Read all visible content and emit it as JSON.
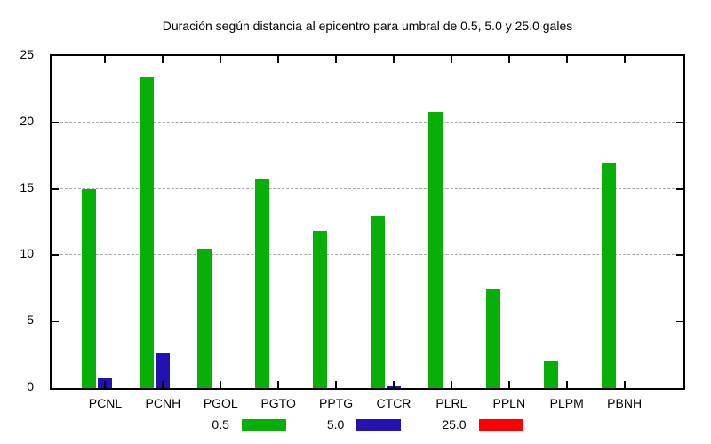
{
  "title": "Duración según distancia al epicentro para umbral de 0.5, 5.0 y 25.0 gales",
  "y_axis": {
    "tick_labels": [
      "0",
      "5",
      "10",
      "15",
      "20",
      "25"
    ]
  },
  "chart_data": {
    "type": "bar",
    "title": "Duración según distancia al epicentro para umbral de 0.5, 5.0 y 25.0 gales",
    "categories": [
      "PCNL",
      "PCNH",
      "PGOL",
      "PGTO",
      "PPTG",
      "CTCR",
      "PLRL",
      "PPLN",
      "PLPM",
      "PBNH"
    ],
    "series": [
      {
        "name": "0.5",
        "color": "#09af09",
        "values": [
          15.0,
          23.4,
          10.5,
          15.7,
          11.8,
          13.0,
          20.8,
          7.5,
          2.1,
          17.0
        ]
      },
      {
        "name": "5.0",
        "color": "#2312b2",
        "values": [
          0.75,
          2.65,
          0,
          0,
          0,
          0.15,
          0,
          0,
          0,
          0
        ]
      },
      {
        "name": "25.0",
        "color": "#ff0000",
        "values": [
          0,
          0,
          0,
          0,
          0,
          0,
          0,
          0,
          0,
          0
        ]
      }
    ],
    "xlabel": "",
    "ylabel": "",
    "ylim": [
      0,
      25
    ],
    "yticks": [
      0,
      5,
      10,
      15,
      20,
      25
    ],
    "grid": "horizontal dashed gridlines at 5, 10, 15, 20",
    "legend_position": "bottom-center"
  }
}
